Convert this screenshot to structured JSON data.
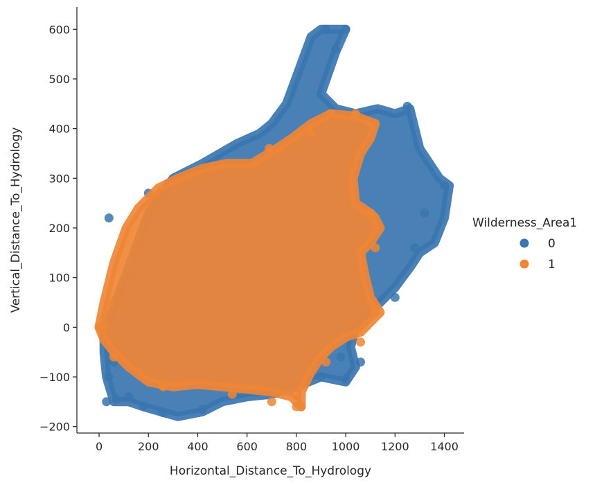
{
  "chart_data": {
    "type": "scatter",
    "xlabel": "Horizontal_Distance_To_Hydrology",
    "ylabel": "Vertical_Distance_To_Hydrology",
    "xlim": [
      -90,
      1480
    ],
    "ylim": [
      -213,
      645
    ],
    "xticks": [
      0,
      200,
      400,
      600,
      800,
      1000,
      1200,
      1400
    ],
    "yticks": [
      -200,
      -100,
      0,
      100,
      200,
      300,
      400,
      500,
      600
    ],
    "xtick_labels": [
      "0",
      "200",
      "400",
      "600",
      "800",
      "1000",
      "1200",
      "1400"
    ],
    "ytick_labels": [
      "−200",
      "−100",
      "0",
      "100",
      "200",
      "300",
      "400",
      "500",
      "600"
    ],
    "legend": {
      "title": "Wilderness_Area1",
      "placement": "right",
      "entries": [
        {
          "label": "0",
          "color": "#3a75af"
        },
        {
          "label": "1",
          "color": "#ef8636"
        }
      ]
    },
    "series": [
      {
        "name": "0",
        "color": "#3a75af",
        "regions": [
          [
            [
              20,
              -10
            ],
            [
              60,
              40
            ],
            [
              120,
              120
            ],
            [
              200,
              230
            ],
            [
              300,
              300
            ],
            [
              420,
              330
            ],
            [
              560,
              370
            ],
            [
              650,
              390
            ],
            [
              700,
              410
            ],
            [
              760,
              450
            ],
            [
              860,
              585
            ],
            [
              900,
              600
            ],
            [
              1000,
              600
            ],
            [
              960,
              555
            ],
            [
              900,
              470
            ],
            [
              960,
              440
            ],
            [
              1040,
              430
            ],
            [
              1130,
              440
            ],
            [
              1200,
              430
            ],
            [
              1260,
              440
            ],
            [
              1300,
              360
            ],
            [
              1380,
              300
            ],
            [
              1420,
              285
            ],
            [
              1400,
              220
            ],
            [
              1360,
              170
            ],
            [
              1300,
              150
            ],
            [
              1260,
              120
            ],
            [
              1200,
              80
            ],
            [
              1140,
              50
            ],
            [
              1080,
              20
            ],
            [
              1040,
              0
            ],
            [
              1020,
              -40
            ],
            [
              1040,
              -80
            ],
            [
              1000,
              -110
            ],
            [
              900,
              -100
            ],
            [
              800,
              -120
            ],
            [
              700,
              -135
            ],
            [
              600,
              -140
            ],
            [
              500,
              -150
            ],
            [
              420,
              -170
            ],
            [
              320,
              -180
            ],
            [
              250,
              -170
            ],
            [
              180,
              -160
            ],
            [
              120,
              -150
            ],
            [
              60,
              -150
            ],
            [
              30,
              -100
            ],
            [
              20,
              -50
            ]
          ]
        ],
        "points": [
          [
            40,
            220
          ],
          [
            40,
            -100
          ],
          [
            30,
            -150
          ],
          [
            70,
            -145
          ],
          [
            1250,
            445
          ],
          [
            1400,
            285
          ],
          [
            1320,
            230
          ],
          [
            1280,
            160
          ],
          [
            1200,
            60
          ],
          [
            1100,
            30
          ],
          [
            1060,
            -70
          ],
          [
            1000,
            -105
          ],
          [
            980,
            -60
          ],
          [
            900,
            -100
          ],
          [
            420,
            -165
          ],
          [
            260,
            -172
          ],
          [
            180,
            -158
          ],
          [
            120,
            -140
          ],
          [
            60,
            -70
          ],
          [
            140,
            100
          ],
          [
            200,
            270
          ],
          [
            960,
            560
          ],
          [
            920,
            600
          ],
          [
            1000,
            600
          ]
        ]
      },
      {
        "name": "1",
        "color": "#ef8636",
        "regions": [
          [
            [
              0,
              0
            ],
            [
              20,
              50
            ],
            [
              60,
              130
            ],
            [
              110,
              200
            ],
            [
              160,
              240
            ],
            [
              240,
              280
            ],
            [
              320,
              300
            ],
            [
              420,
              320
            ],
            [
              520,
              330
            ],
            [
              620,
              330
            ],
            [
              720,
              360
            ],
            [
              780,
              380
            ],
            [
              860,
              410
            ],
            [
              940,
              430
            ],
            [
              1040,
              425
            ],
            [
              1120,
              410
            ],
            [
              1100,
              380
            ],
            [
              1060,
              350
            ],
            [
              1030,
              300
            ],
            [
              1040,
              250
            ],
            [
              1100,
              230
            ],
            [
              1120,
              220
            ],
            [
              1140,
              200
            ],
            [
              1100,
              170
            ],
            [
              1060,
              150
            ],
            [
              1080,
              100
            ],
            [
              1100,
              60
            ],
            [
              1140,
              30
            ],
            [
              1100,
              10
            ],
            [
              1060,
              -10
            ],
            [
              1000,
              -20
            ],
            [
              940,
              -40
            ],
            [
              900,
              -60
            ],
            [
              860,
              -90
            ],
            [
              820,
              -130
            ],
            [
              820,
              -160
            ],
            [
              780,
              -140
            ],
            [
              700,
              -130
            ],
            [
              600,
              -125
            ],
            [
              500,
              -120
            ],
            [
              400,
              -115
            ],
            [
              300,
              -120
            ],
            [
              200,
              -110
            ],
            [
              120,
              -80
            ],
            [
              60,
              -50
            ],
            [
              20,
              -25
            ],
            [
              0,
              0
            ]
          ]
        ],
        "points": [
          [
            0,
            0
          ],
          [
            20,
            0
          ],
          [
            40,
            50
          ],
          [
            60,
            -60
          ],
          [
            260,
            -120
          ],
          [
            540,
            -135
          ],
          [
            700,
            -150
          ],
          [
            800,
            -160
          ],
          [
            820,
            -160
          ],
          [
            920,
            -70
          ],
          [
            1060,
            -30
          ],
          [
            1120,
            30
          ],
          [
            1120,
            160
          ],
          [
            1100,
            230
          ],
          [
            1040,
            430
          ],
          [
            940,
            430
          ],
          [
            860,
            390
          ],
          [
            690,
            360
          ]
        ]
      }
    ]
  }
}
